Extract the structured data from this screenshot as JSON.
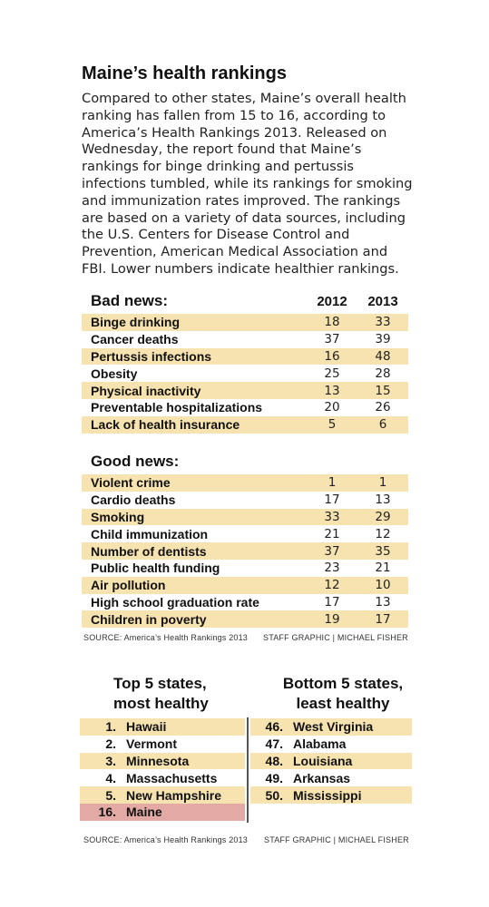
{
  "title": "Maine’s health rankings",
  "intro": "Compared to other states, Maine’s overall health ranking has fallen from 15 to 16, according to America’s Health Rankings 2013. Released on Wednesday, the report found that Maine’s rankings for binge drinking and pertussis infections tumbled, while its rankings for smoking and immunization rates improved. The rankings are based on a variety of data sources, including the U.S. Centers for Disease Control and Prevention, American Medical Association and FBI. Lower numbers indicate healthier rankings.",
  "bad": {
    "header": "Bad news:",
    "col1": "2012",
    "col2": "2013",
    "rows": [
      {
        "label": "Binge drinking",
        "v2012": "18",
        "v2013": "33"
      },
      {
        "label": "Cancer deaths",
        "v2012": "37",
        "v2013": "39"
      },
      {
        "label": "Pertussis infections",
        "v2012": "16",
        "v2013": "48"
      },
      {
        "label": "Obesity",
        "v2012": "25",
        "v2013": "28"
      },
      {
        "label": "Physical inactivity",
        "v2012": "13",
        "v2013": "15"
      },
      {
        "label": "Preventable hospitalizations",
        "v2012": "20",
        "v2013": "26"
      },
      {
        "label": "Lack of health insurance",
        "v2012": "5",
        "v2013": "6"
      }
    ]
  },
  "good": {
    "header": "Good news:",
    "rows": [
      {
        "label": "Violent crime",
        "v2012": "1",
        "v2013": "1"
      },
      {
        "label": "Cardio deaths",
        "v2012": "17",
        "v2013": "13"
      },
      {
        "label": "Smoking",
        "v2012": "33",
        "v2013": "29"
      },
      {
        "label": "Child immunization",
        "v2012": "21",
        "v2013": "12"
      },
      {
        "label": "Number of dentists",
        "v2012": "37",
        "v2013": "35"
      },
      {
        "label": "Public health funding",
        "v2012": "23",
        "v2013": "21"
      },
      {
        "label": "Air pollution",
        "v2012": "12",
        "v2013": "10"
      },
      {
        "label": "High school graduation rate",
        "v2012": "17",
        "v2013": "13"
      },
      {
        "label": "Children in poverty",
        "v2012": "19",
        "v2013": "17"
      }
    ]
  },
  "source1": {
    "left": "SOURCE: America’s Health Rankings 2013",
    "right": "STAFF GRAPHIC | MICHAEL FISHER"
  },
  "top5": {
    "title_line1": "Top 5 states,",
    "title_line2": "most healthy",
    "items": [
      {
        "rank": "1.",
        "state": "Hawaii"
      },
      {
        "rank": "2.",
        "state": "Vermont"
      },
      {
        "rank": "3.",
        "state": "Minnesota"
      },
      {
        "rank": "4.",
        "state": "Massachusetts"
      },
      {
        "rank": "5.",
        "state": "New Hampshire"
      },
      {
        "rank": "16.",
        "state": "Maine"
      }
    ]
  },
  "bottom5": {
    "title_line1": "Bottom 5 states,",
    "title_line2": "least healthy",
    "items": [
      {
        "rank": "46.",
        "state": "West Virginia"
      },
      {
        "rank": "47.",
        "state": "Alabama"
      },
      {
        "rank": "48.",
        "state": "Louisiana"
      },
      {
        "rank": "49.",
        "state": "Arkansas"
      },
      {
        "rank": "50.",
        "state": "Mississippi"
      }
    ]
  },
  "source2": {
    "left": "SOURCE: America’s Health Rankings 2013",
    "right": "STAFF GRAPHIC | MICHAEL FISHER"
  },
  "colors": {
    "shade": "#f7e3b0",
    "highlight": "#e3a9a4"
  }
}
